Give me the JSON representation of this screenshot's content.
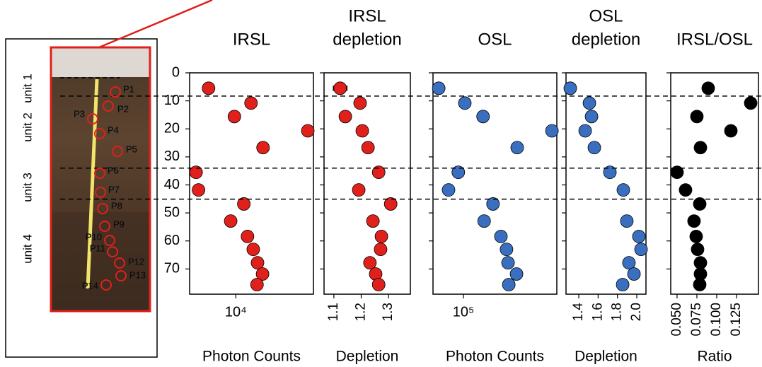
{
  "photo": {
    "units": [
      "unit 1",
      "unit 2",
      "unit 3",
      "unit 4"
    ],
    "samples": [
      "P1",
      "P2",
      "P3",
      "P4",
      "P5",
      "P6",
      "P7",
      "P8",
      "P9",
      "P10",
      "P11",
      "P12",
      "P13",
      "P14"
    ]
  },
  "depth_lines": [
    8.3,
    34,
    45.1
  ],
  "chart_data": [
    {
      "type": "scatter",
      "title": [
        "IRSL"
      ],
      "xlabel": "Photon Counts",
      "xlog": true,
      "color": "#e0201b",
      "xlim": [
        5200,
        30000
      ],
      "xticks": [
        {
          "value": 10000,
          "label": "10⁴"
        }
      ],
      "ylim": [
        0,
        79
      ],
      "yticks": [
        0,
        10,
        20,
        30,
        40,
        50,
        60,
        70
      ],
      "y_reversed": true,
      "x": [
        6800,
        12400,
        9800,
        27700,
        14700,
        5700,
        5900,
        11200,
        9300,
        11800,
        12800,
        13600,
        14600,
        13500
      ],
      "y": [
        5.5,
        10.8,
        15.6,
        20.7,
        26.7,
        35.5,
        41.8,
        46.8,
        52.9,
        58.4,
        63,
        67.8,
        71.8,
        75.6
      ]
    },
    {
      "type": "scatter",
      "title": [
        "IRSL",
        "depletion"
      ],
      "xlabel": "Depletion",
      "color": "#e0201b",
      "xlim": [
        1.064,
        1.38
      ],
      "xticks": [
        1.1,
        1.2,
        1.3
      ],
      "ylim": [
        0,
        79
      ],
      "yticks": [
        0,
        10,
        20,
        30,
        40,
        50,
        60,
        70
      ],
      "y_reversed": true,
      "x": [
        1.123,
        1.196,
        1.142,
        1.204,
        1.225,
        1.264,
        1.191,
        1.308,
        1.243,
        1.274,
        1.271,
        1.232,
        1.253,
        1.264
      ],
      "errors": [
        0.025,
        0.005,
        0.005,
        0.005,
        0.005,
        0.02,
        0.02,
        0.015,
        0.01,
        0.005,
        0.005,
        0.005,
        0.005,
        0.005
      ],
      "y": [
        5.5,
        10.8,
        15.6,
        20.7,
        26.7,
        35.5,
        41.8,
        46.8,
        52.9,
        58.4,
        63,
        67.8,
        71.8,
        75.6
      ]
    },
    {
      "type": "scatter",
      "title": [
        "OSL"
      ],
      "xlabel": "Photon Counts",
      "xlog": true,
      "color": "#3a6fc0",
      "xlim": [
        65000,
        375000
      ],
      "xticks": [
        {
          "value": 100000,
          "label": "10⁵"
        }
      ],
      "ylim": [
        0,
        79
      ],
      "yticks": [
        0,
        10,
        20,
        30,
        40,
        50,
        60,
        70
      ],
      "y_reversed": true,
      "x": [
        70500,
        102000,
        132000,
        350000,
        214000,
        93000,
        81000,
        152000,
        134000,
        170000,
        184000,
        188000,
        212000,
        190000
      ],
      "y": [
        5.5,
        10.8,
        15.6,
        20.7,
        26.7,
        35.5,
        41.8,
        46.8,
        52.9,
        58.4,
        63,
        67.8,
        71.8,
        75.6
      ]
    },
    {
      "type": "scatter",
      "title": [
        "OSL",
        "depletion"
      ],
      "xlabel": "Depletion",
      "color": "#3a6fc0",
      "xlim": [
        1.268,
        2.095
      ],
      "xticks": [
        1.4,
        1.6,
        1.8,
        {
          "value": 2,
          "label": "2.0"
        }
      ],
      "ylim": [
        0,
        79
      ],
      "yticks": [
        0,
        10,
        20,
        30,
        40,
        50,
        60,
        70
      ],
      "y_reversed": true,
      "x": [
        1.312,
        1.51,
        1.532,
        1.466,
        1.561,
        1.722,
        1.861,
        null,
        1.897,
        2.022,
        2.044,
        1.919,
        1.971,
        1.854
      ],
      "y": [
        5.5,
        10.8,
        15.6,
        20.7,
        26.7,
        35.5,
        41.8,
        46.8,
        52.9,
        58.4,
        63,
        67.8,
        71.8,
        75.6
      ]
    },
    {
      "type": "scatter",
      "title": [
        "IRSL/OSL"
      ],
      "xlabel": "Ratio",
      "color": "#000000",
      "xlim": [
        0.042,
        0.1527
      ],
      "xticks": [
        {
          "value": 0.05,
          "label": "0.050"
        },
        {
          "value": 0.075,
          "label": "0.075"
        },
        {
          "value": 0.1,
          "label": "0.100"
        },
        {
          "value": 0.125,
          "label": "0.125"
        }
      ],
      "ylim": [
        0,
        79
      ],
      "yticks": [
        0,
        10,
        20,
        30,
        40,
        50,
        60,
        70
      ],
      "y_reversed": true,
      "x": [
        0.0893,
        0.1429,
        0.075,
        0.1179,
        0.0795,
        0.05,
        0.0607,
        0.0786,
        0.0714,
        0.0741,
        0.0759,
        0.0795,
        0.0795,
        0.0786
      ],
      "y": [
        5.5,
        10.8,
        15.6,
        20.7,
        26.7,
        35.5,
        41.8,
        46.8,
        52.9,
        58.4,
        63,
        67.8,
        71.8,
        75.6
      ]
    }
  ]
}
